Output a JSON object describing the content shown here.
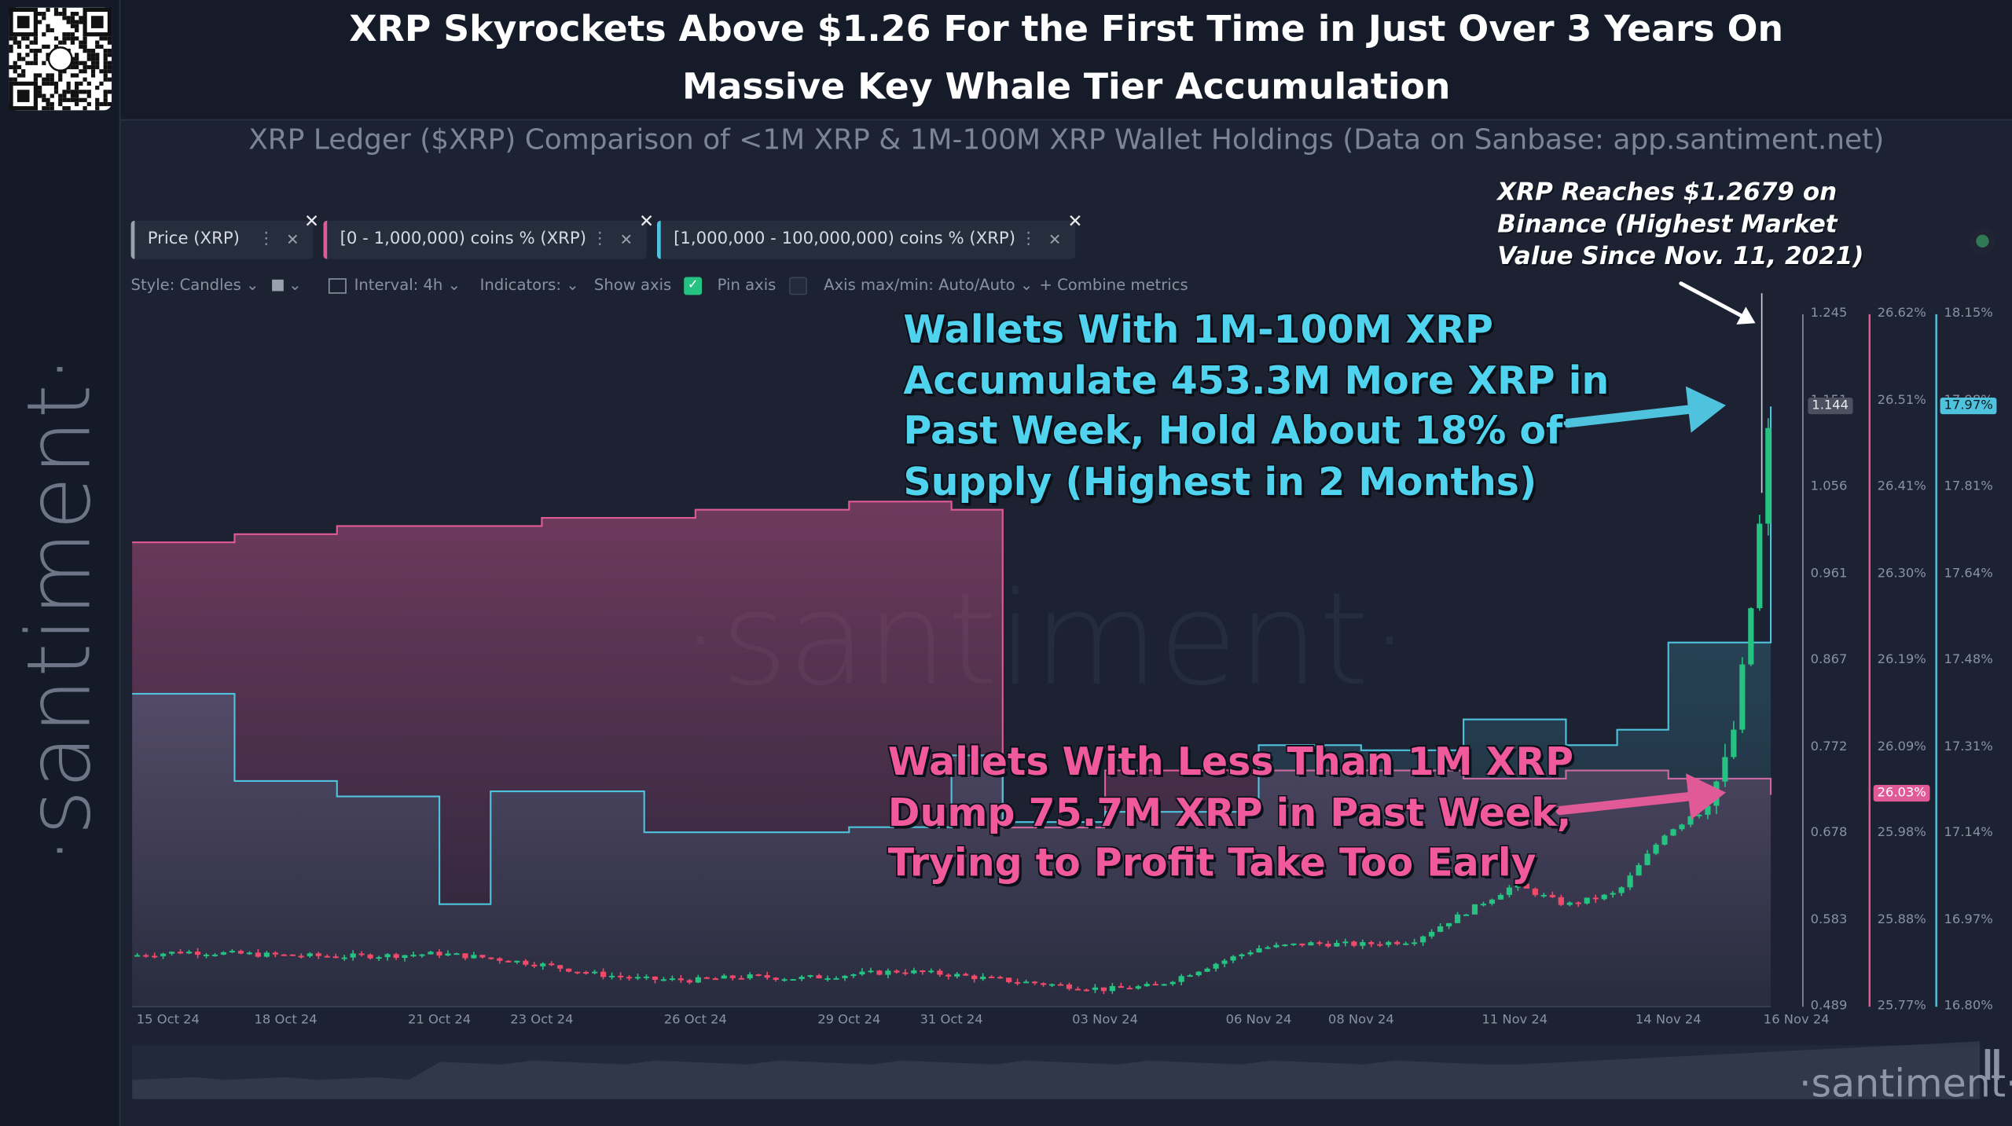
{
  "header": {
    "title_line1": "XRP Skyrockets Above $1.26 For the First Time in Just Over 3 Years On",
    "title_line2": "Massive Key Whale Tier Accumulation",
    "subtitle": "XRP Ledger ($XRP) Comparison of <1M XRP & 1M-100M XRP Wallet Holdings (Data on Sanbase: app.santiment.net)"
  },
  "brand": {
    "vertical": "·santiment·",
    "watermark": "·santiment·",
    "bottom": "·santiment·"
  },
  "metric_chips": [
    {
      "label": "Price (XRP)",
      "color": "#9aa1ae"
    },
    {
      "label": "[0 - 1,000,000) coins % (XRP)",
      "color": "#e05a97"
    },
    {
      "label": "[1,000,000 - 100,000,000) coins % (XRP)",
      "color": "#4fc3dd"
    }
  ],
  "toolbar": {
    "style": "Style: Candles",
    "interval": "Interval: 4h",
    "indicators": "Indicators:",
    "show_axis": "Show axis",
    "pin_axis": "Pin axis",
    "axis_maxmin": "Axis max/min: Auto/Auto",
    "combine": "+ Combine metrics"
  },
  "annotations": {
    "blue": [
      "Wallets With 1M-100M XRP",
      "Accumulate 453.3M More XRP in",
      "Past Week, Hold About 18% of",
      "Supply (Highest in 2 Months)"
    ],
    "pink": [
      "Wallets With Less Than 1M XRP",
      "Dump 75.7M XRP in Past Week,",
      "Trying to Profit Take Too Early"
    ],
    "white": [
      "XRP Reaches $1.2679 on",
      "Binance (Highest Market",
      "Value Since Nov. 11, 2021)"
    ]
  },
  "axes": {
    "price_ticks": [
      "1.245",
      "1.151",
      "1.056",
      "0.961",
      "0.867",
      "0.772",
      "0.678",
      "0.583",
      "0.489"
    ],
    "price_tag": "1.144",
    "small_ticks": [
      "26.62%",
      "26.51%",
      "26.41%",
      "26.30%",
      "26.19%",
      "26.09%",
      "25.98%",
      "25.88%",
      "25.77%"
    ],
    "small_tag": "26.03%",
    "mid_ticks": [
      "18.15%",
      "17.98%",
      "17.81%",
      "17.64%",
      "17.48%",
      "17.31%",
      "17.14%",
      "16.97%",
      "16.80%"
    ],
    "mid_tag": "17.97%",
    "dates": [
      "15 Oct 24",
      "18 Oct 24",
      "21 Oct 24",
      "23 Oct 24",
      "26 Oct 24",
      "29 Oct 24",
      "31 Oct 24",
      "03 Nov 24",
      "06 Nov 24",
      "08 Nov 24",
      "11 Nov 24",
      "14 Nov 24",
      "16 Nov 24"
    ]
  },
  "colors": {
    "price": "#26c281",
    "price_down": "#ef4a6a",
    "small_holders": "#e05a97",
    "mid_holders": "#4fc3dd",
    "background": "#1c2232"
  },
  "chart_data": {
    "type": "line",
    "title": "XRP Ledger ($XRP) Comparison of <1M XRP & 1M-100M XRP Wallet Holdings",
    "x_range": [
      "2024-10-15",
      "2024-11-16"
    ],
    "series": [
      {
        "name": "Price (XRP)",
        "style": "candles",
        "axis": "price",
        "x": [
          "2024-10-15",
          "2024-10-16",
          "2024-10-17",
          "2024-10-18",
          "2024-10-19",
          "2024-10-20",
          "2024-10-21",
          "2024-10-22",
          "2024-10-23",
          "2024-10-24",
          "2024-10-25",
          "2024-10-26",
          "2024-10-27",
          "2024-10-28",
          "2024-10-29",
          "2024-10-30",
          "2024-10-31",
          "2024-11-01",
          "2024-11-02",
          "2024-11-03",
          "2024-11-04",
          "2024-11-05",
          "2024-11-06",
          "2024-11-07",
          "2024-11-08",
          "2024-11-09",
          "2024-11-10",
          "2024-11-11",
          "2024-11-12",
          "2024-11-13",
          "2024-11-14",
          "2024-11-15",
          "2024-11-16"
        ],
        "values": [
          0.545,
          0.549,
          0.547,
          0.545,
          0.544,
          0.545,
          0.547,
          0.542,
          0.535,
          0.525,
          0.519,
          0.518,
          0.522,
          0.52,
          0.524,
          0.528,
          0.524,
          0.518,
          0.513,
          0.508,
          0.512,
          0.533,
          0.553,
          0.558,
          0.557,
          0.561,
          0.591,
          0.622,
          0.6,
          0.613,
          0.683,
          0.74,
          1.144
        ]
      },
      {
        "name": "[0 - 1,000,000) coins % (XRP)",
        "axis": "small",
        "unit": "%",
        "x": [
          "2024-10-15",
          "2024-10-17",
          "2024-10-19",
          "2024-10-21",
          "2024-10-23",
          "2024-10-26",
          "2024-10-29",
          "2024-10-31",
          "2024-11-01",
          "2024-11-03",
          "2024-11-06",
          "2024-11-08",
          "2024-11-10",
          "2024-11-12",
          "2024-11-14",
          "2024-11-16"
        ],
        "values": [
          26.34,
          26.35,
          26.36,
          26.36,
          26.37,
          26.38,
          26.39,
          26.38,
          25.99,
          26.06,
          26.06,
          26.06,
          26.05,
          26.06,
          26.05,
          26.03
        ]
      },
      {
        "name": "[1,000,000 - 100,000,000) coins % (XRP)",
        "axis": "mid",
        "unit": "%",
        "x": [
          "2024-10-15",
          "2024-10-17",
          "2024-10-19",
          "2024-10-21",
          "2024-10-22",
          "2024-10-25",
          "2024-10-29",
          "2024-10-31",
          "2024-11-01",
          "2024-11-03",
          "2024-11-06",
          "2024-11-08",
          "2024-11-10",
          "2024-11-12",
          "2024-11-13",
          "2024-11-14",
          "2024-11-15",
          "2024-11-16"
        ],
        "values": [
          17.41,
          17.24,
          17.21,
          17.0,
          17.22,
          17.14,
          17.15,
          17.29,
          17.16,
          17.18,
          17.31,
          17.3,
          17.36,
          17.31,
          17.34,
          17.51,
          17.51,
          17.97
        ]
      }
    ],
    "axes": {
      "price": {
        "ylim": [
          0.489,
          1.245
        ]
      },
      "small": {
        "ylim": [
          25.77,
          26.62
        ]
      },
      "mid": {
        "ylim": [
          16.8,
          18.15
        ]
      }
    },
    "legend": "top-left chips",
    "grid": false
  }
}
